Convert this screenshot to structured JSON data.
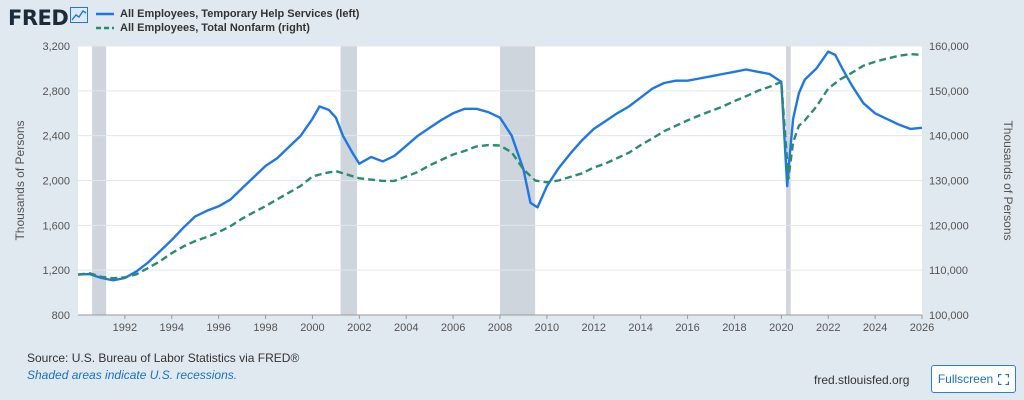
{
  "header": {
    "logo_text": "FRED",
    "logo_icon": "line-graph-icon"
  },
  "legend": {
    "items": [
      {
        "label": "All Employees, Temporary Help Services (left)",
        "style": "solid"
      },
      {
        "label": "All Employees, Total Nonfarm (right)",
        "style": "dashed"
      }
    ]
  },
  "footer": {
    "source": "Source: U.S. Bureau of Labor Statistics via FRED®",
    "recession_note": "Shaded areas indicate U.S. recessions.",
    "url": "fred.stlouisfed.org",
    "fullscreen_label": "Fullscreen",
    "fullscreen_icon": "expand-icon"
  },
  "colors": {
    "left_series": "#1f77e6",
    "right_series": "#2a8b73",
    "recession": "#c9d0d8",
    "background": "#e1e9f0"
  },
  "chart_data": {
    "type": "line",
    "title": "",
    "xlabel": "",
    "ylabel_left": "Thousands of Persons",
    "ylabel_right": "Thousands of Persons",
    "xlim": [
      1990,
      2026
    ],
    "ylim_left": [
      800,
      3200
    ],
    "ylim_right": [
      100000,
      160000
    ],
    "x_ticks": [
      "1992",
      "1994",
      "1996",
      "1998",
      "2000",
      "2002",
      "2004",
      "2006",
      "2008",
      "2010",
      "2012",
      "2014",
      "2016",
      "2018",
      "2020",
      "2022",
      "2024",
      "2026"
    ],
    "y_left_ticks": [
      "800",
      "1,200",
      "1,600",
      "2,000",
      "2,400",
      "2,800",
      "3,200"
    ],
    "y_right_ticks": [
      "100,000",
      "110,000",
      "120,000",
      "130,000",
      "140,000",
      "150,000",
      "160,000"
    ],
    "grid": true,
    "recessions": [
      [
        1990.6,
        1991.2
      ],
      [
        2001.2,
        2001.9
      ],
      [
        2008.0,
        2009.5
      ],
      [
        2020.2,
        2020.4
      ]
    ],
    "series": [
      {
        "name": "All Employees, Temporary Help Services (left)",
        "axis": "left",
        "style": "solid",
        "x": [
          1990.0,
          1990.5,
          1991.0,
          1991.5,
          1992.0,
          1992.5,
          1993.0,
          1993.5,
          1994.0,
          1994.5,
          1995.0,
          1995.5,
          1996.0,
          1996.5,
          1997.0,
          1997.5,
          1998.0,
          1998.5,
          1999.0,
          1999.5,
          2000.0,
          2000.3,
          2000.7,
          2001.0,
          2001.3,
          2001.7,
          2002.0,
          2002.5,
          2003.0,
          2003.5,
          2004.0,
          2004.5,
          2005.0,
          2005.5,
          2006.0,
          2006.5,
          2007.0,
          2007.5,
          2008.0,
          2008.5,
          2009.0,
          2009.3,
          2009.6,
          2010.0,
          2010.5,
          2011.0,
          2011.5,
          2012.0,
          2012.5,
          2013.0,
          2013.5,
          2014.0,
          2014.5,
          2015.0,
          2015.5,
          2016.0,
          2016.5,
          2017.0,
          2017.5,
          2018.0,
          2018.5,
          2019.0,
          2019.5,
          2020.0,
          2020.25,
          2020.35,
          2020.5,
          2020.75,
          2021.0,
          2021.5,
          2022.0,
          2022.3,
          2022.6,
          2023.0,
          2023.5,
          2024.0,
          2024.5,
          2025.0,
          2025.5,
          2026.0
        ],
        "values": [
          1160,
          1165,
          1130,
          1110,
          1130,
          1190,
          1270,
          1370,
          1470,
          1580,
          1680,
          1730,
          1770,
          1830,
          1930,
          2030,
          2130,
          2200,
          2300,
          2400,
          2550,
          2660,
          2630,
          2560,
          2400,
          2250,
          2150,
          2210,
          2170,
          2220,
          2310,
          2400,
          2470,
          2540,
          2600,
          2640,
          2640,
          2610,
          2560,
          2400,
          2100,
          1800,
          1760,
          1950,
          2110,
          2240,
          2360,
          2460,
          2530,
          2600,
          2660,
          2740,
          2820,
          2870,
          2890,
          2890,
          2910,
          2930,
          2950,
          2970,
          2990,
          2970,
          2950,
          2880,
          1950,
          2200,
          2550,
          2780,
          2900,
          3000,
          3150,
          3120,
          3000,
          2850,
          2690,
          2600,
          2550,
          2500,
          2460,
          2470
        ]
      },
      {
        "name": "All Employees, Total Nonfarm (right)",
        "axis": "right",
        "style": "dashed",
        "x": [
          1990.0,
          1990.5,
          1991.0,
          1991.5,
          1992.0,
          1992.5,
          1993.0,
          1993.5,
          1994.0,
          1994.5,
          1995.0,
          1995.5,
          1996.0,
          1996.5,
          1997.0,
          1997.5,
          1998.0,
          1998.5,
          1999.0,
          1999.5,
          2000.0,
          2000.5,
          2001.0,
          2001.5,
          2002.0,
          2002.5,
          2003.0,
          2003.5,
          2004.0,
          2004.5,
          2005.0,
          2005.5,
          2006.0,
          2006.5,
          2007.0,
          2007.5,
          2008.0,
          2008.5,
          2009.0,
          2009.5,
          2010.0,
          2010.5,
          2011.0,
          2011.5,
          2012.0,
          2012.5,
          2013.0,
          2013.5,
          2014.0,
          2014.5,
          2015.0,
          2015.5,
          2016.0,
          2016.5,
          2017.0,
          2017.5,
          2018.0,
          2018.5,
          2019.0,
          2019.5,
          2020.0,
          2020.3,
          2020.5,
          2020.75,
          2021.0,
          2021.5,
          2022.0,
          2022.5,
          2023.0,
          2023.5,
          2024.0,
          2024.5,
          2025.0,
          2025.5,
          2026.0
        ],
        "values": [
          109000,
          109300,
          108500,
          108200,
          108400,
          109100,
          110500,
          112000,
          113800,
          115300,
          116500,
          117400,
          118500,
          119800,
          121500,
          122900,
          124300,
          125800,
          127300,
          128800,
          130900,
          131600,
          132100,
          131300,
          130500,
          130200,
          129900,
          129900,
          130900,
          131900,
          133400,
          134600,
          135800,
          136600,
          137600,
          137900,
          137800,
          136300,
          132500,
          130000,
          129600,
          130000,
          130800,
          131600,
          132900,
          133800,
          135000,
          136200,
          137900,
          139400,
          141000,
          142200,
          143400,
          144500,
          145500,
          146500,
          147700,
          148800,
          150000,
          150900,
          152000,
          130400,
          138500,
          142200,
          143400,
          146500,
          150500,
          152500,
          154000,
          155600,
          156500,
          157200,
          157800,
          158200,
          158000
        ]
      }
    ]
  }
}
